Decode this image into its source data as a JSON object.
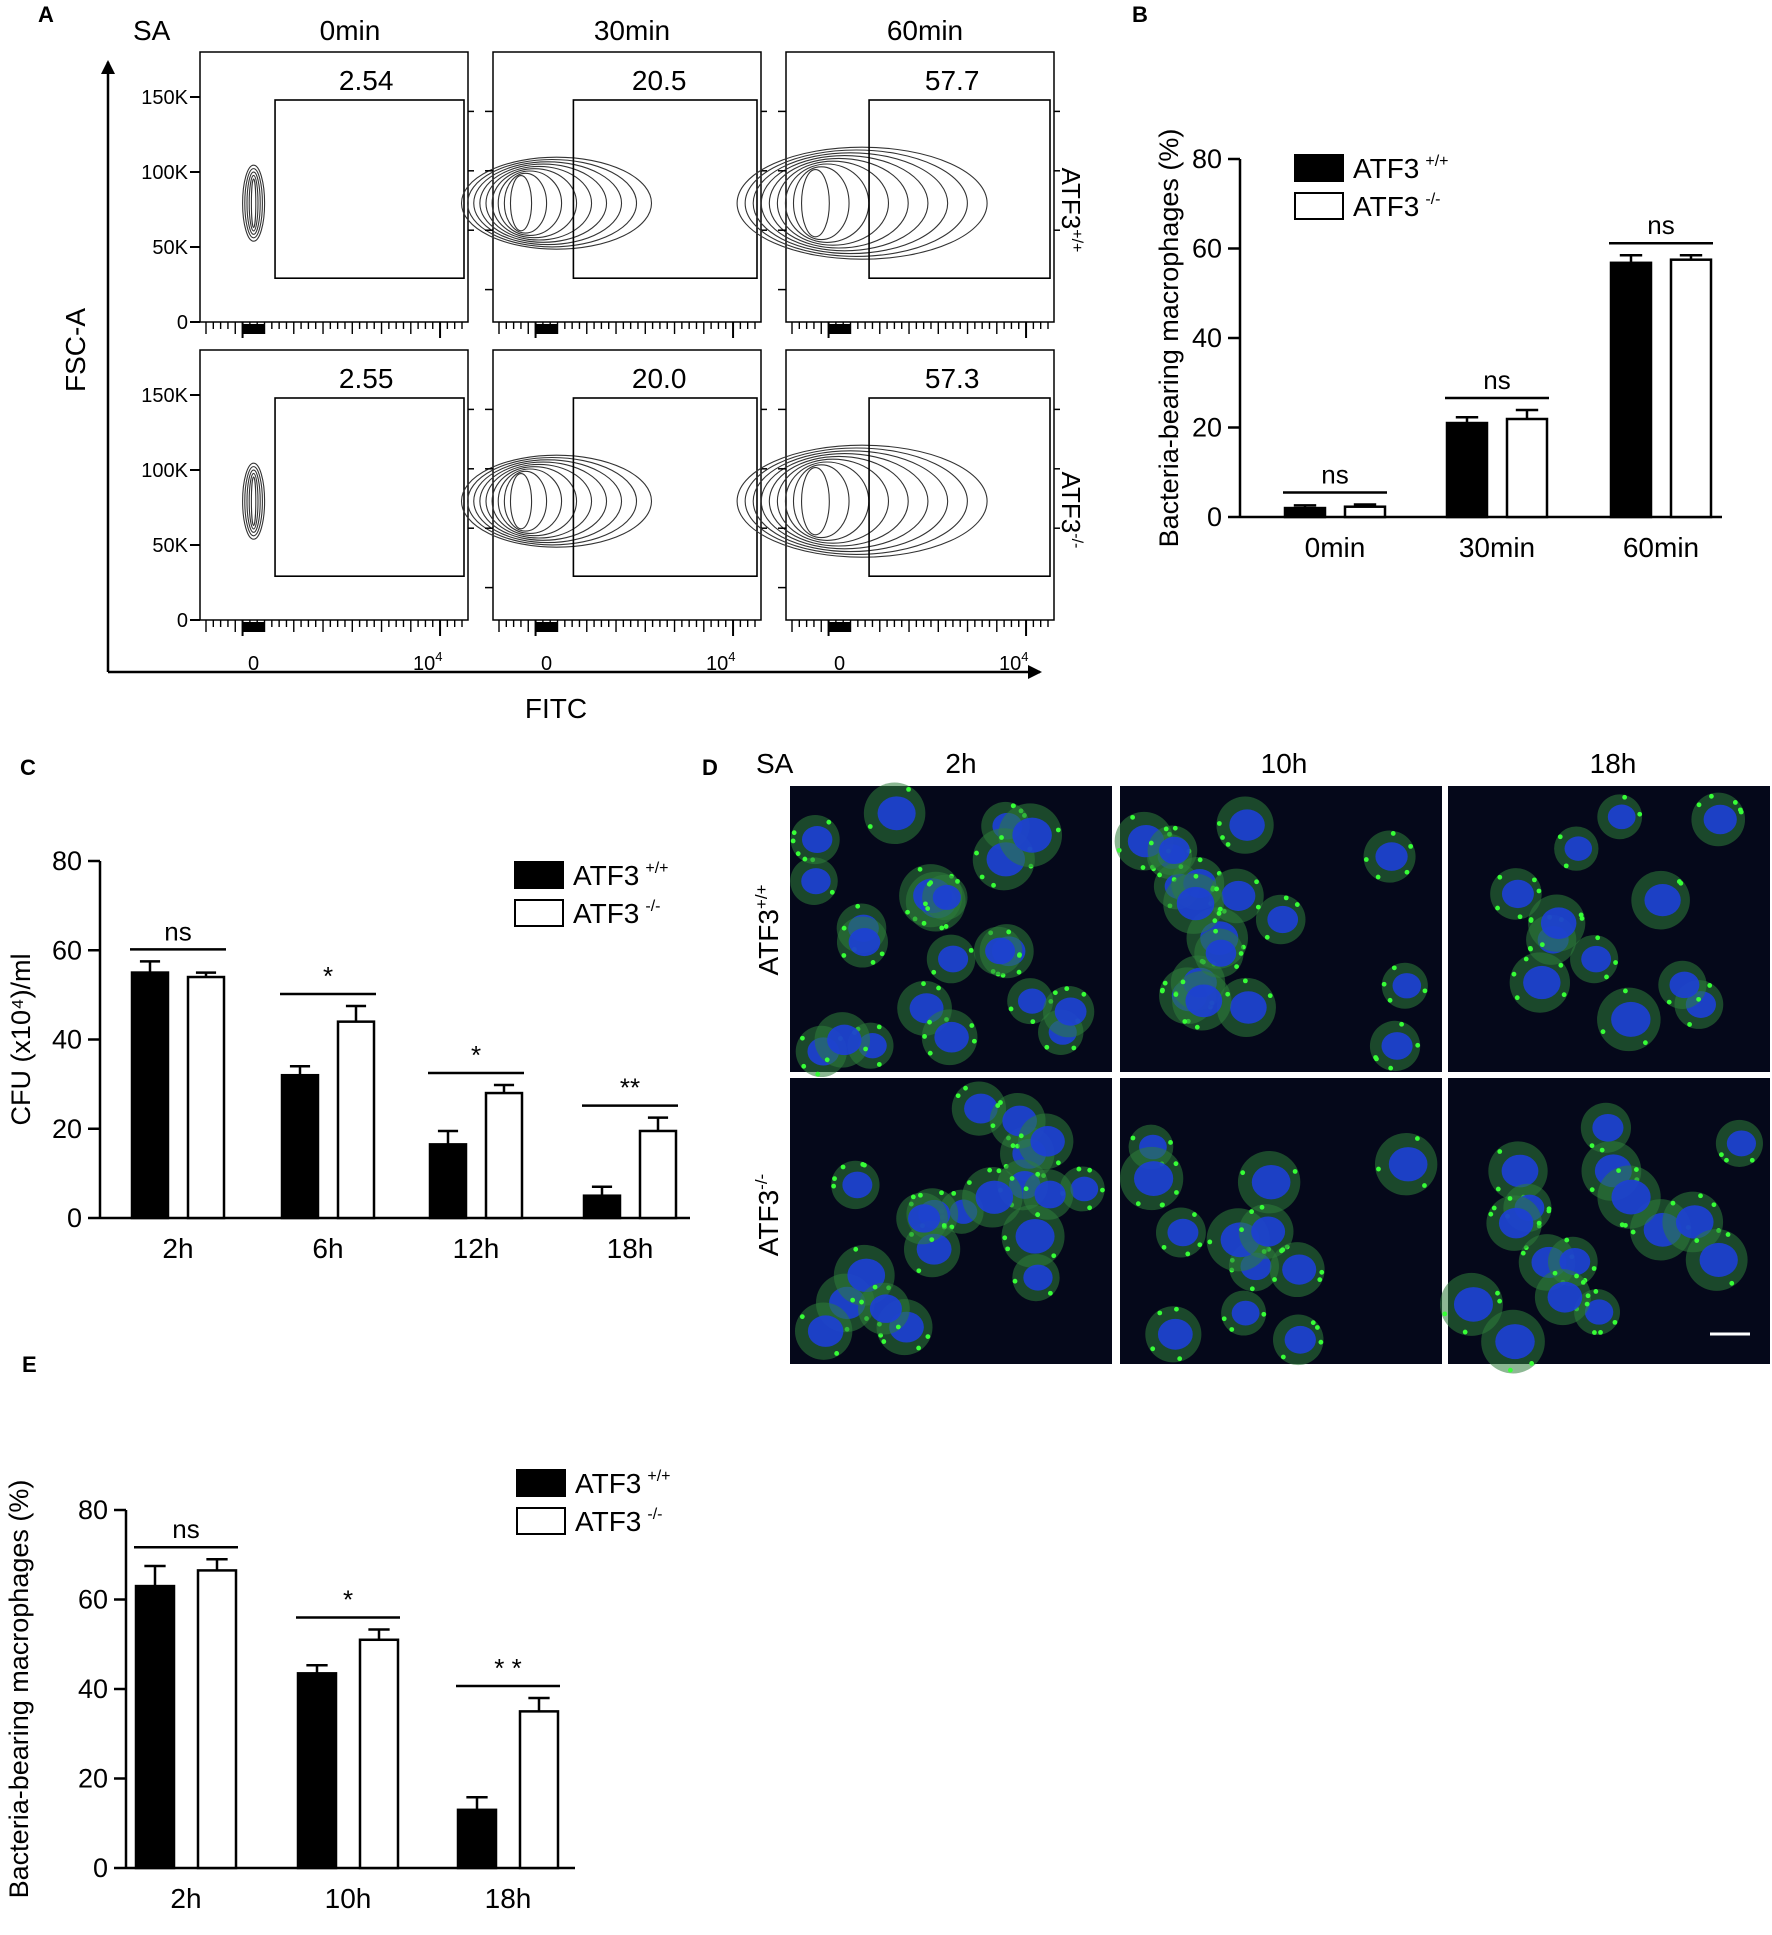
{
  "panel_labels": [
    "A",
    "B",
    "C",
    "D",
    "E"
  ],
  "panel_a": {
    "sa_label": "SA",
    "timepoints": [
      "0min",
      "30min",
      "60min"
    ],
    "rows": [
      {
        "genotype": "ATF3",
        "sup": "+/+",
        "gates": [
          "2.54",
          "20.5",
          "57.7"
        ]
      },
      {
        "genotype": "ATF3",
        "sup": "-/-",
        "gates": [
          "2.55",
          "20.0",
          "57.3"
        ]
      }
    ],
    "y_ticks": [
      "150K",
      "100K",
      "50K",
      "0"
    ],
    "x_ticks": [
      "0",
      "10"
    ],
    "x_tick_exp": "4",
    "y_axis_label": "FSC-A",
    "x_axis_label": "FITC"
  },
  "panel_d": {
    "sa_label": "SA",
    "timepoints": [
      "2h",
      "10h",
      "18h"
    ],
    "rows": [
      {
        "genotype": "ATF3",
        "sup": "+/+"
      },
      {
        "genotype": "ATF3",
        "sup": "-/-"
      }
    ],
    "colors": {
      "background": "#05081a",
      "nucleus": "#1d3fd6",
      "cytoplasm": "#2d7d3a",
      "bacteria": "#37ff37"
    }
  },
  "legend": [
    {
      "name": "ATF3",
      "sup": "+/+",
      "fill": "#000000"
    },
    {
      "name": "ATF3",
      "sup": "-/-",
      "fill": "#ffffff"
    }
  ],
  "chart_data": [
    {
      "id": "B",
      "type": "bar",
      "ylabel": "Bacteria-bearing macrophages (%)",
      "categories": [
        "0min",
        "30min",
        "60min"
      ],
      "ylim": [
        0,
        80
      ],
      "yticks": [
        0,
        20,
        40,
        60,
        80
      ],
      "series": [
        {
          "name": "ATF3 +/+",
          "values": [
            2.0,
            21.0,
            56.8
          ],
          "errors": [
            0.6,
            1.3,
            1.7
          ]
        },
        {
          "name": "ATF3 -/-",
          "values": [
            2.3,
            21.9,
            57.5
          ],
          "errors": [
            0.5,
            2.0,
            1.0
          ]
        }
      ],
      "significance": [
        "ns",
        "ns",
        "ns"
      ]
    },
    {
      "id": "C",
      "type": "bar",
      "ylabel": "CFU (x10⁴)/ml",
      "categories": [
        "2h",
        "6h",
        "12h",
        "18h"
      ],
      "ylim": [
        0,
        80
      ],
      "yticks": [
        0,
        20,
        40,
        60,
        80
      ],
      "series": [
        {
          "name": "ATF3 +/+",
          "values": [
            55.0,
            32.0,
            16.5,
            5.0
          ],
          "errors": [
            2.5,
            2.0,
            3.0,
            2.0
          ]
        },
        {
          "name": "ATF3 -/-",
          "values": [
            54.0,
            44.0,
            28.0,
            19.5
          ],
          "errors": [
            1.0,
            3.5,
            1.8,
            3.0
          ]
        }
      ],
      "significance": [
        "ns",
        "*",
        "*",
        "**"
      ]
    },
    {
      "id": "E",
      "type": "bar",
      "ylabel": "Bacteria-bearing macrophages (%)",
      "categories": [
        "2h",
        "10h",
        "18h"
      ],
      "ylim": [
        0,
        80
      ],
      "yticks": [
        0,
        20,
        40,
        60,
        80
      ],
      "series": [
        {
          "name": "ATF3 +/+",
          "values": [
            63.0,
            43.5,
            13.0
          ],
          "errors": [
            4.5,
            1.8,
            2.8
          ]
        },
        {
          "name": "ATF3 -/-",
          "values": [
            66.5,
            51.0,
            35.0
          ],
          "errors": [
            2.5,
            2.3,
            3.0
          ]
        }
      ],
      "significance": [
        "ns",
        "*",
        "* *"
      ]
    }
  ]
}
